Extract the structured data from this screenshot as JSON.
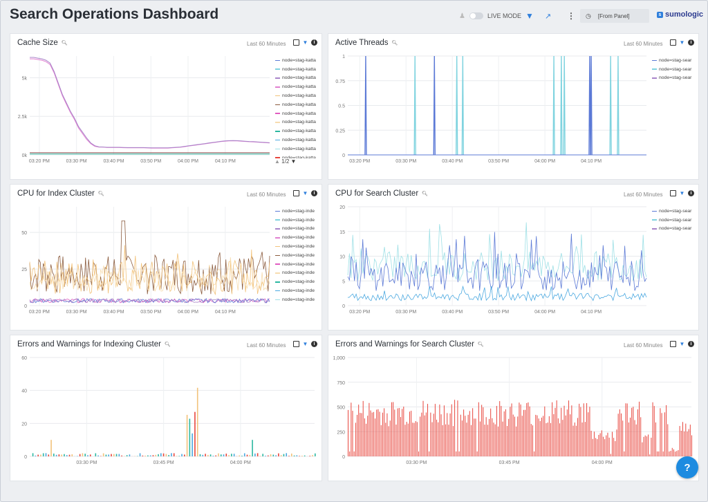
{
  "header": {
    "title": "Search Operations Dashboard",
    "live_mode_label": "LIVE MODE",
    "time_range": "[From Panel]",
    "logo_text": "sumologic"
  },
  "colors": {
    "accent": "#2f7fdc",
    "red_series": "#e8453c"
  },
  "panels": [
    {
      "title": "Cache Size",
      "time_label": "Last 60 Minutes",
      "pager": "1/2",
      "legend": [
        "node=stag-katta",
        "node=stag-katta",
        "node=stag-katta",
        "node=stag-katta",
        "node=stag-katta",
        "node=stag-katta",
        "node=stag-katta",
        "node=stag-katta",
        "node=stag-katta",
        "node=stag-katta",
        "node=stag-katta",
        "node=stag-katta"
      ],
      "chart_data": {
        "type": "line",
        "y_ticks": [
          "0k",
          "2.5k",
          "5k"
        ],
        "x_ticks": [
          "03:20 PM",
          "03:30 PM",
          "03:40 PM",
          "03:50 PM",
          "04:00 PM",
          "04:10 PM"
        ],
        "ylim": [
          0,
          7000
        ],
        "series": [
          {
            "color": "#e07fd0",
            "values": [
              6800,
              6800,
              6750,
              6700,
              6600,
              6400,
              5800,
              5000,
              4200,
              3600,
              3000,
              2500,
              1900,
              1500,
              1100,
              800,
              600,
              550,
              550,
              520,
              520,
              520,
              520,
              510,
              500,
              500,
              500,
              500,
              500,
              490,
              480,
              480,
              480,
              480,
              480,
              500,
              520,
              540,
              580,
              620,
              660,
              700,
              740,
              780,
              820,
              860,
              900,
              940,
              970,
              990,
              1000,
              990,
              970,
              950,
              930,
              920,
              900,
              880,
              860,
              840
            ]
          },
          {
            "color": "#a884c9",
            "values": [
              6900,
              6900,
              6850,
              6800,
              6700,
              6500,
              5900,
              5100,
              4300,
              3700,
              3100,
              2600,
              2000,
              1600,
              1200,
              850,
              650,
              570,
              560,
              540,
              540,
              540,
              540,
              530,
              520,
              520,
              520,
              520,
              520,
              510,
              500,
              500,
              500,
              500,
              500,
              520,
              540,
              560,
              600,
              640,
              680,
              720,
              760,
              800,
              840,
              880,
              920,
              960,
              990,
              1010,
              1020,
              1010,
              990,
              970,
              950,
              940,
              920,
              900,
              880,
              860
            ]
          },
          {
            "color": "#8a4a4a",
            "values": [
              150,
              150,
              150,
              150,
              150,
              150,
              150,
              150,
              150,
              150,
              150,
              150,
              150,
              150,
              150,
              150,
              150,
              150,
              150,
              150,
              150,
              150,
              150,
              150,
              150,
              150,
              150,
              150,
              150,
              150,
              150,
              150,
              150,
              150,
              150,
              150,
              150,
              150,
              150,
              150,
              150,
              150,
              150,
              150,
              150,
              150,
              150,
              150,
              150,
              150,
              150,
              150,
              150,
              150,
              150,
              150,
              150,
              150,
              150,
              150
            ]
          },
          {
            "color": "#2bb7a0",
            "values": [
              60,
              60,
              60,
              60,
              60,
              60,
              60,
              60,
              60,
              60,
              60,
              60,
              60,
              60,
              60,
              60,
              60,
              60,
              60,
              60,
              60,
              60,
              60,
              60,
              60,
              60,
              60,
              60,
              60,
              60,
              60,
              60,
              60,
              60,
              60,
              60,
              60,
              60,
              60,
              60,
              60,
              60,
              60,
              60,
              60,
              60,
              60,
              60,
              60,
              60,
              60,
              60,
              60,
              60,
              60,
              60,
              60,
              60,
              60,
              60
            ]
          }
        ]
      }
    },
    {
      "title": "Active Threads",
      "time_label": "Last 60 Minutes",
      "legend": [
        "node=stag-sear",
        "node=stag-sear",
        "node=stag-sear"
      ],
      "chart_data": {
        "type": "line",
        "y_ticks": [
          "0",
          "0.25",
          "0.5",
          "0.75",
          "1"
        ],
        "x_ticks": [
          "03:20 PM",
          "03:30 PM",
          "03:40 PM",
          "03:50 PM",
          "04:00 PM",
          "04:10 PM"
        ],
        "ylim": [
          0,
          1
        ],
        "spikes": [
          {
            "x": 0.06,
            "color": "#5b79d6"
          },
          {
            "x": 0.225,
            "color": "#7fd3df"
          },
          {
            "x": 0.29,
            "color": "#5b79d6"
          },
          {
            "x": 0.365,
            "color": "#7fd3df"
          },
          {
            "x": 0.385,
            "color": "#7fd3df"
          },
          {
            "x": 0.69,
            "color": "#7fd3df"
          },
          {
            "x": 0.715,
            "color": "#7fd3df"
          },
          {
            "x": 0.725,
            "color": "#7fd3df"
          },
          {
            "x": 0.81,
            "color": "#5b79d6"
          },
          {
            "x": 0.815,
            "color": "#5b79d6"
          },
          {
            "x": 0.88,
            "color": "#7fd3df"
          },
          {
            "x": 0.905,
            "color": "#7fd3df"
          }
        ]
      }
    },
    {
      "title": "CPU for Index Cluster",
      "time_label": "Last 60 Minutes",
      "legend": [
        "node=stag-inde",
        "node=stag-inde",
        "node=stag-inde",
        "node=stag-inde",
        "node=stag-inde",
        "node=stag-inde",
        "node=stag-inde",
        "node=stag-inde",
        "node=stag-inde",
        "node=stag-inde",
        "node=stag-inde"
      ],
      "chart_data": {
        "type": "line",
        "y_ticks": [
          "0",
          "25",
          "50"
        ],
        "x_ticks": [
          "03:20 PM",
          "03:30 PM",
          "03:40 PM",
          "03:50 PM",
          "04:00 PM",
          "04:10 PM"
        ],
        "ylim": [
          0,
          70
        ]
      }
    },
    {
      "title": "CPU for Search Cluster",
      "time_label": "Last 60 Minutes",
      "legend": [
        "node=stag-sear",
        "node=stag-sear",
        "node=stag-sear"
      ],
      "chart_data": {
        "type": "line",
        "y_ticks": [
          "0",
          "5",
          "10",
          "15",
          "20"
        ],
        "x_ticks": [
          "03:20 PM",
          "03:30 PM",
          "03:40 PM",
          "03:50 PM",
          "04:00 PM",
          "04:10 PM"
        ],
        "ylim": [
          0,
          20
        ]
      }
    },
    {
      "title": "Errors and Warnings for Indexing Cluster",
      "time_label": "Last 60 Minutes",
      "chart_data": {
        "type": "bar",
        "y_ticks": [
          "0",
          "20",
          "40",
          "60"
        ],
        "x_ticks": [
          "03:30 PM",
          "03:45 PM",
          "04:00 PM"
        ],
        "ylim": [
          0,
          60
        ]
      }
    },
    {
      "title": "Errors and Warnings for Search Cluster",
      "time_label": "Last 60 Minutes",
      "chart_data": {
        "type": "bar",
        "y_ticks": [
          "0",
          "250",
          "500",
          "750",
          "1,000"
        ],
        "x_ticks": [
          "03:30 PM",
          "03:45 PM",
          "04:00 PM"
        ],
        "ylim": [
          0,
          1000
        ]
      }
    }
  ]
}
